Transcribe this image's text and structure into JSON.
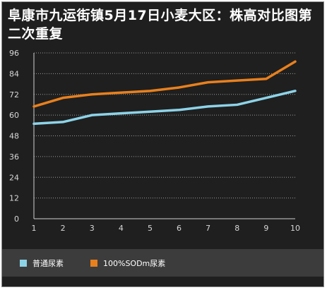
{
  "chart_data": {
    "type": "line",
    "title": "阜康市九运街镇5月17日小麦大区：株高对比图第二次重复",
    "xlabel": "",
    "ylabel": "",
    "x": [
      1,
      2,
      3,
      4,
      5,
      6,
      7,
      8,
      9,
      10
    ],
    "yticks": [
      0,
      12,
      24,
      36,
      48,
      60,
      72,
      84,
      96
    ],
    "ylim": [
      0,
      96
    ],
    "grid": true,
    "legend_position": "bottom",
    "series": [
      {
        "name": "普通尿素",
        "color": "#8dd3e8",
        "values": [
          55,
          56,
          60,
          61,
          62,
          63,
          65,
          66,
          70,
          74
        ]
      },
      {
        "name": "100%SODm尿素",
        "color": "#e8801e",
        "values": [
          65,
          70,
          72,
          73,
          74,
          76,
          79,
          80,
          81,
          91
        ]
      }
    ]
  }
}
